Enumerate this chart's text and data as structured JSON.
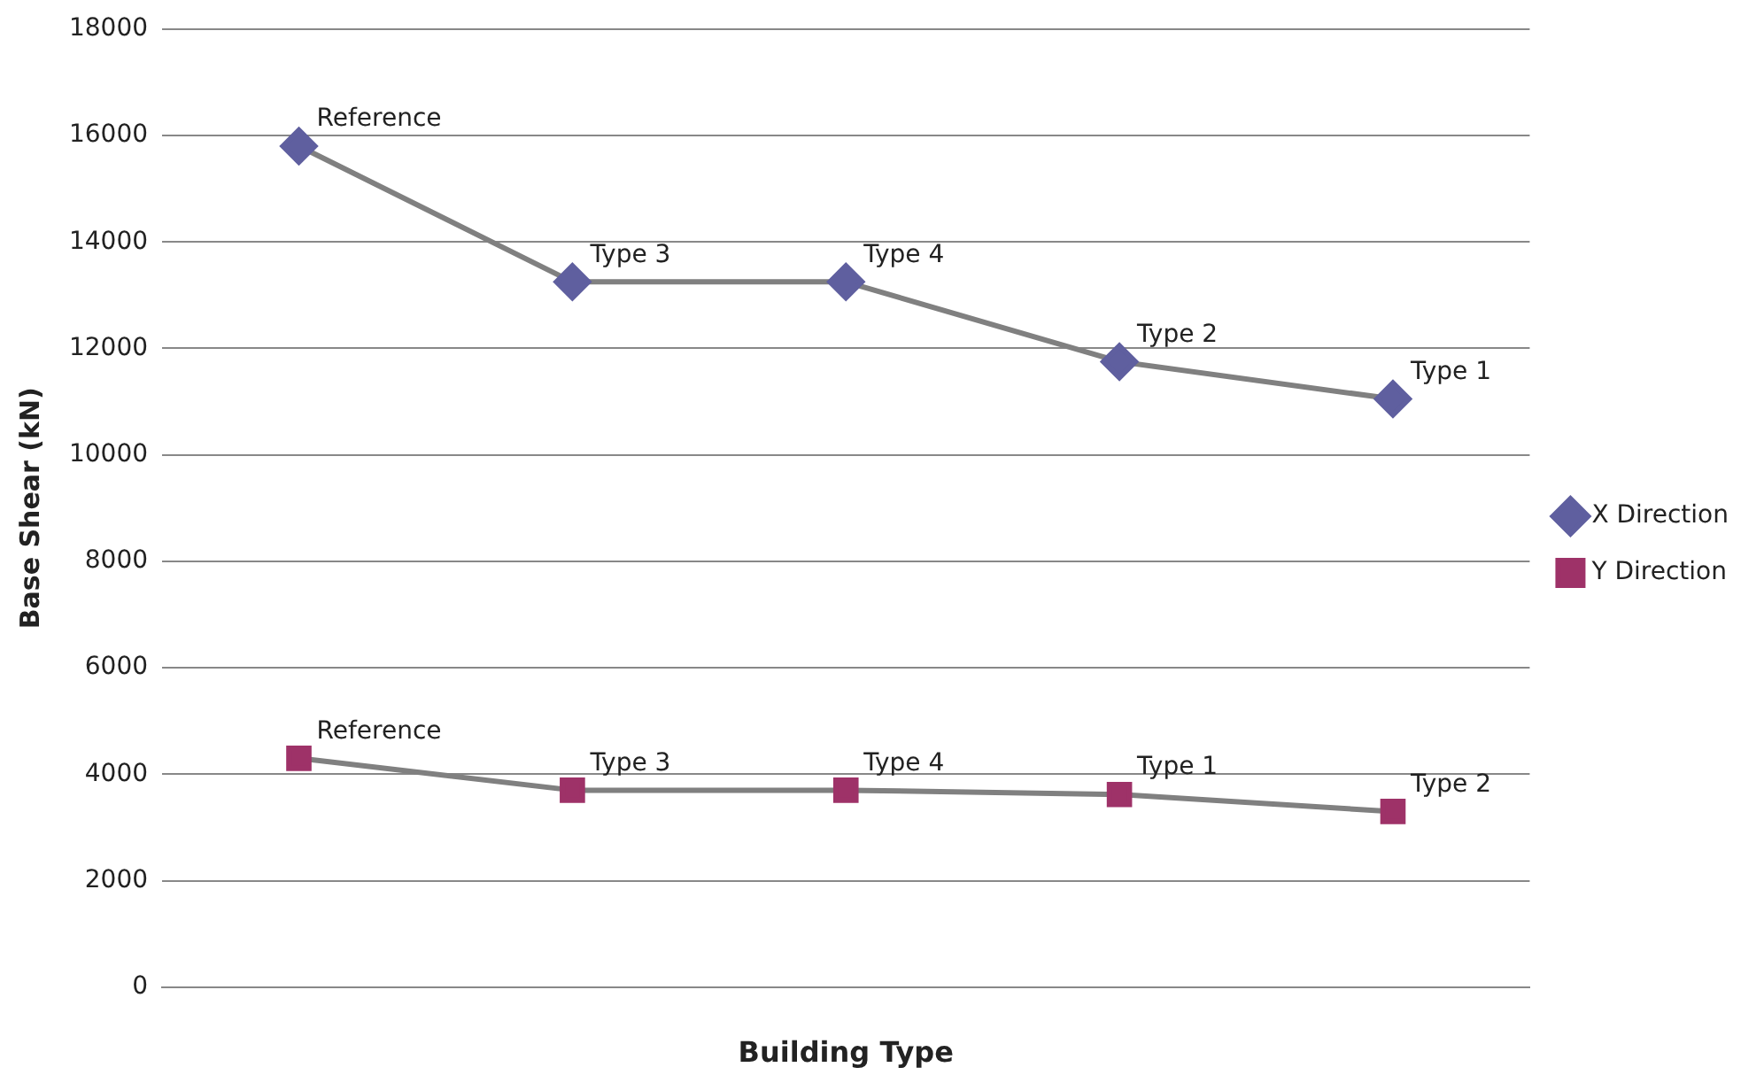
{
  "chart_data": {
    "type": "line",
    "xlabel": "Building Type",
    "ylabel": "Base Shear (kN)",
    "categories": [
      null,
      null,
      null,
      null,
      null
    ],
    "series": [
      {
        "name": "X Direction",
        "color": "#5f5f9f",
        "marker": "diamond",
        "values": [
          15800,
          13250,
          13250,
          11750,
          11050
        ],
        "value_labels": [
          "Reference",
          "Type 3",
          "Type 4",
          "Type 2",
          "Type 1"
        ]
      },
      {
        "name": "Y Direction",
        "color": "#9e3268",
        "marker": "square",
        "values": [
          4300,
          3700,
          3700,
          3620,
          3300
        ],
        "value_labels": [
          "Reference",
          "Type 3",
          "Type 4",
          "Type 1",
          "Type 2"
        ]
      }
    ],
    "ylim": [
      0,
      18000
    ],
    "yticks": [
      0,
      2000,
      4000,
      6000,
      8000,
      10000,
      12000,
      14000,
      16000,
      18000
    ],
    "grid": "y",
    "legend": "right",
    "line_style": "solid"
  }
}
